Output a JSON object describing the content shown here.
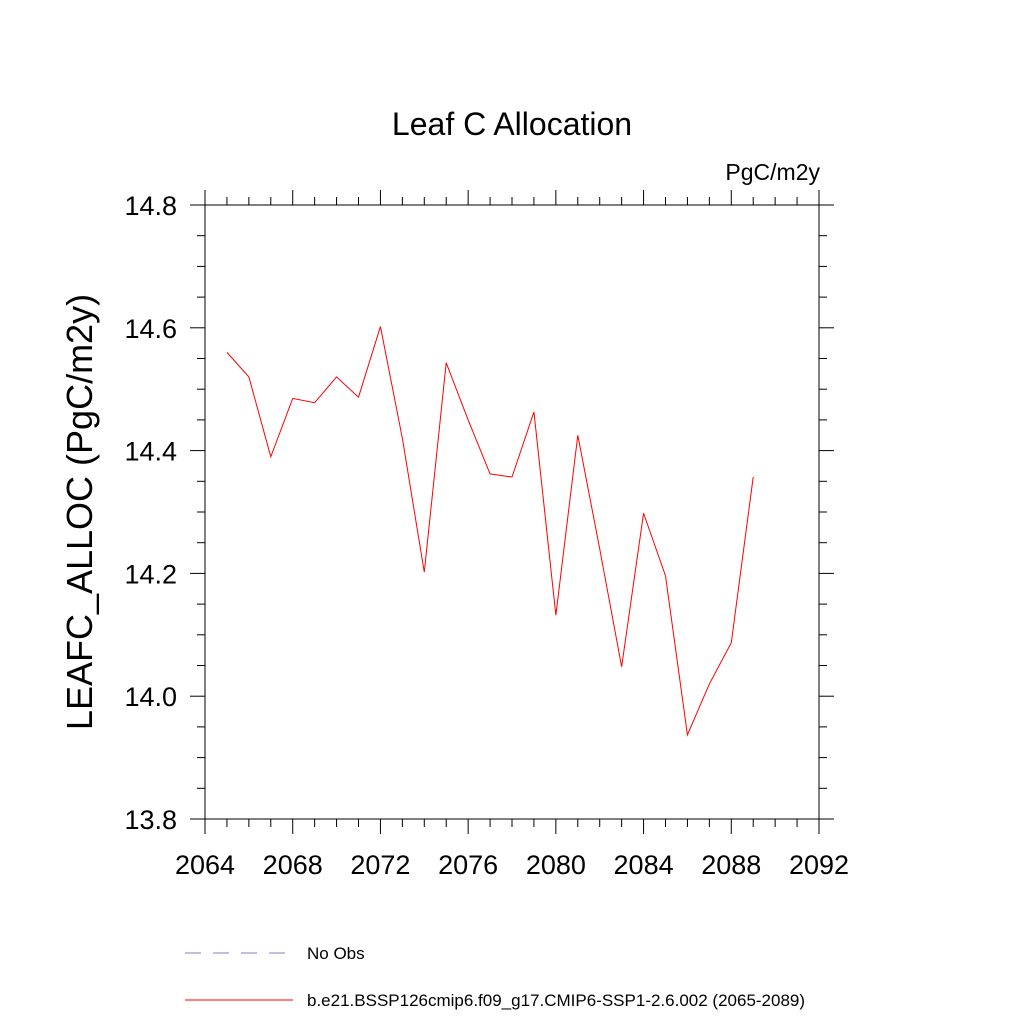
{
  "chart_data": {
    "type": "line",
    "title": "Leaf C Allocation",
    "units_label": "PgC/m2y",
    "ylabel": "LEAFC_ALLOC  (PgC/m2y)",
    "xlabel": "",
    "xlim": [
      2064,
      2092
    ],
    "ylim": [
      13.8,
      14.8
    ],
    "xticks": [
      2064,
      2068,
      2072,
      2076,
      2080,
      2084,
      2088,
      2092
    ],
    "xtick_labels": [
      "2064",
      "2068",
      "2072",
      "2076",
      "2080",
      "2084",
      "2088",
      "2092"
    ],
    "yticks": [
      13.8,
      14.0,
      14.2,
      14.4,
      14.6,
      14.8
    ],
    "ytick_labels": [
      "13.8",
      "14.0",
      "14.2",
      "14.4",
      "14.6",
      "14.8"
    ],
    "grid": false,
    "legend_position": "bottom",
    "series": [
      {
        "name": "b.e21.BSSP126cmip6.f09_g17.CMIP6-SSP1-2.6.002 (2065-2089)",
        "color": "#ff0000",
        "style": "solid",
        "x": [
          2065,
          2066,
          2067,
          2068,
          2069,
          2070,
          2071,
          2072,
          2073,
          2074,
          2075,
          2076,
          2077,
          2078,
          2079,
          2080,
          2081,
          2082,
          2083,
          2084,
          2085,
          2086,
          2087,
          2088,
          2089
        ],
        "values": [
          14.56,
          14.52,
          14.39,
          14.485,
          14.478,
          14.52,
          14.487,
          14.602,
          14.42,
          14.202,
          14.543,
          14.45,
          14.362,
          14.357,
          14.463,
          14.132,
          14.425,
          14.24,
          14.048,
          14.298,
          14.196,
          13.937,
          14.02,
          14.087,
          14.357
        ]
      },
      {
        "name": "No Obs",
        "color": "#8080c0",
        "style": "dashed",
        "x": [],
        "values": []
      }
    ]
  }
}
